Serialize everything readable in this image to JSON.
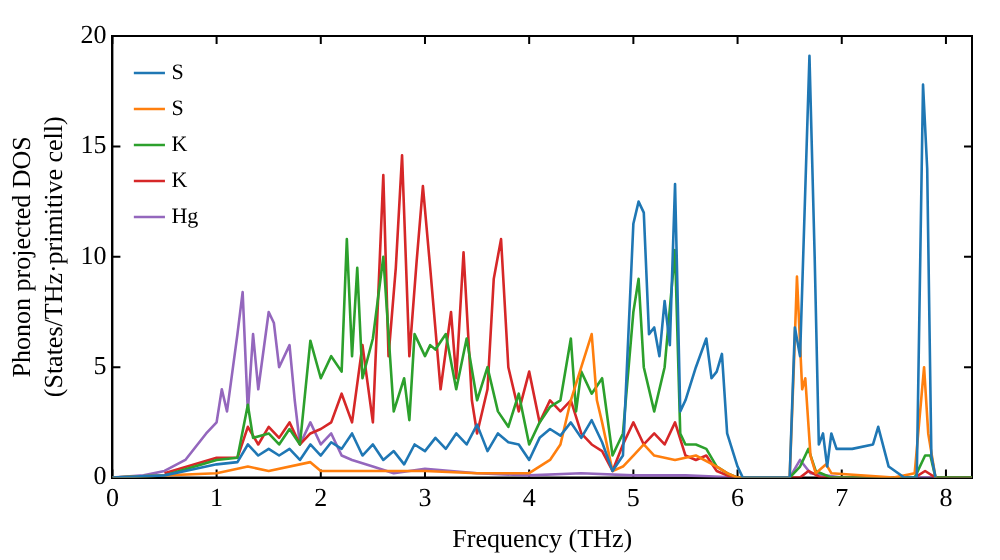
{
  "chart_data": {
    "type": "line",
    "xlabel": "Frequency (THz)",
    "ylabel": "Phonon projected DOS\n(States/THz·primitive cell)",
    "xlim": [
      0,
      8.25
    ],
    "ylim": [
      0,
      20
    ],
    "xticks": [
      0,
      1,
      2,
      3,
      4,
      5,
      6,
      7,
      8
    ],
    "yticks": [
      0,
      5,
      10,
      15,
      20
    ],
    "legend": "top left",
    "marker": "none",
    "series": [
      {
        "name": "S",
        "color": "#1f77b4",
        "x": [
          0,
          0.5,
          0.8,
          1.0,
          1.2,
          1.3,
          1.4,
          1.5,
          1.6,
          1.7,
          1.8,
          1.9,
          2.0,
          2.1,
          2.2,
          2.3,
          2.4,
          2.5,
          2.6,
          2.7,
          2.8,
          2.9,
          3.0,
          3.1,
          3.2,
          3.3,
          3.4,
          3.5,
          3.6,
          3.7,
          3.8,
          3.9,
          4.0,
          4.1,
          4.2,
          4.3,
          4.4,
          4.5,
          4.6,
          4.7,
          4.8,
          4.9,
          5.0,
          5.05,
          5.1,
          5.15,
          5.2,
          5.25,
          5.3,
          5.35,
          5.4,
          5.45,
          5.5,
          5.6,
          5.7,
          5.75,
          5.8,
          5.85,
          5.9,
          6.0,
          6.05,
          6.5,
          6.55,
          6.6,
          6.69,
          6.74,
          6.78,
          6.82,
          6.86,
          6.9,
          6.95,
          7.1,
          7.3,
          7.35,
          7.45,
          7.6,
          7.72,
          7.78,
          7.82,
          7.86,
          7.9
        ],
        "values": [
          0,
          0.1,
          0.4,
          0.6,
          0.7,
          1.5,
          1.0,
          1.3,
          1.0,
          1.3,
          0.8,
          1.5,
          1.0,
          1.6,
          1.3,
          2.0,
          1.0,
          1.5,
          0.8,
          1.2,
          0.6,
          1.5,
          1.2,
          1.8,
          1.3,
          2.0,
          1.5,
          2.4,
          1.2,
          2.0,
          1.6,
          1.5,
          0.8,
          1.8,
          2.2,
          1.9,
          2.5,
          1.8,
          2.6,
          1.6,
          0.3,
          1.0,
          11.5,
          12.5,
          12.0,
          6.5,
          6.8,
          5.5,
          8.0,
          6.0,
          13.3,
          3.0,
          3.5,
          5.0,
          6.3,
          4.5,
          4.8,
          5.6,
          2.0,
          0.5,
          0,
          0,
          6.8,
          5.5,
          19.1,
          10,
          1.5,
          2.0,
          0.5,
          2.0,
          1.3,
          1.3,
          1.5,
          2.3,
          0.5,
          0,
          0,
          17.8,
          14.0,
          1.0,
          0
        ]
      },
      {
        "name": "S",
        "color": "#ff7f0e",
        "x": [
          0,
          1.0,
          1.3,
          1.5,
          1.9,
          2.0,
          2.5,
          3.0,
          3.5,
          4.0,
          4.2,
          4.3,
          4.4,
          4.5,
          4.6,
          4.65,
          4.7,
          4.8,
          4.9,
          5.0,
          5.1,
          5.2,
          5.4,
          5.6,
          5.8,
          5.9,
          6.0,
          6.5,
          6.54,
          6.57,
          6.62,
          6.65,
          6.7,
          6.75,
          6.85,
          6.9,
          7.5,
          7.7,
          7.79,
          7.83,
          7.9
        ],
        "values": [
          0,
          0.2,
          0.5,
          0.3,
          0.7,
          0.3,
          0.3,
          0.3,
          0.2,
          0.2,
          0.8,
          1.5,
          3.5,
          5.0,
          6.5,
          3.5,
          2.5,
          0.3,
          0.5,
          1.0,
          1.5,
          1.0,
          0.8,
          1.0,
          0.5,
          0.2,
          0,
          0,
          5.0,
          9.1,
          4.0,
          4.5,
          1.0,
          0.2,
          0.6,
          0.2,
          0,
          0.2,
          5.0,
          2.0,
          0
        ]
      },
      {
        "name": "K",
        "color": "#2ca02c",
        "x": [
          0,
          0.5,
          1.0,
          1.2,
          1.3,
          1.35,
          1.5,
          1.6,
          1.7,
          1.8,
          1.9,
          2.0,
          2.1,
          2.2,
          2.25,
          2.3,
          2.35,
          2.4,
          2.5,
          2.6,
          2.7,
          2.8,
          2.85,
          2.9,
          3.0,
          3.05,
          3.1,
          3.2,
          3.3,
          3.4,
          3.5,
          3.6,
          3.7,
          3.8,
          3.9,
          4.0,
          4.1,
          4.2,
          4.3,
          4.4,
          4.45,
          4.5,
          4.6,
          4.7,
          4.8,
          4.9,
          5.0,
          5.05,
          5.1,
          5.2,
          5.3,
          5.4,
          5.45,
          5.5,
          5.6,
          5.7,
          5.8,
          5.9,
          6.0,
          6.5,
          6.6,
          6.68,
          6.75,
          6.9,
          7.7,
          7.8,
          7.85,
          7.9,
          8.25
        ],
        "values": [
          0,
          0.1,
          0.8,
          0.9,
          3.3,
          1.8,
          2.0,
          1.5,
          2.2,
          1.5,
          6.2,
          4.5,
          5.5,
          4.8,
          10.8,
          5.5,
          9.5,
          4.5,
          6.3,
          10.0,
          3.0,
          4.5,
          2.6,
          6.5,
          5.5,
          6.0,
          5.8,
          6.5,
          4.0,
          6.3,
          3.5,
          5.0,
          3.0,
          2.3,
          3.8,
          1.5,
          2.5,
          3.2,
          3.5,
          6.3,
          3.0,
          4.8,
          3.8,
          4.5,
          1.0,
          2.0,
          7.5,
          9.0,
          5.0,
          3.0,
          5.0,
          10.3,
          2.0,
          1.5,
          1.5,
          1.3,
          0.5,
          0.2,
          0,
          0,
          0.5,
          1.3,
          0.3,
          0,
          0,
          1.0,
          1.0,
          0,
          0
        ]
      },
      {
        "name": "K",
        "color": "#d62728",
        "x": [
          0.5,
          1.0,
          1.2,
          1.3,
          1.4,
          1.5,
          1.6,
          1.7,
          1.8,
          1.9,
          2.0,
          2.1,
          2.2,
          2.3,
          2.4,
          2.5,
          2.6,
          2.65,
          2.72,
          2.78,
          2.85,
          2.92,
          2.98,
          3.05,
          3.15,
          3.25,
          3.3,
          3.37,
          3.45,
          3.5,
          3.6,
          3.66,
          3.73,
          3.8,
          3.9,
          4.0,
          4.1,
          4.2,
          4.3,
          4.4,
          4.5,
          4.6,
          4.7,
          4.8,
          4.9,
          5.0,
          5.1,
          5.2,
          5.3,
          5.4,
          5.5,
          5.6,
          5.7,
          5.8,
          5.9,
          6.0,
          6.6,
          6.68,
          6.8,
          7.7,
          7.8,
          7.9,
          8.25
        ],
        "values": [
          0.2,
          0.9,
          0.9,
          2.3,
          1.5,
          2.3,
          1.8,
          2.5,
          1.5,
          2.0,
          2.2,
          2.5,
          3.8,
          2.5,
          6.0,
          2.5,
          13.7,
          5.5,
          9.5,
          14.6,
          5.5,
          9.8,
          13.2,
          9.5,
          4.0,
          7.5,
          4.5,
          10.2,
          3.5,
          2.0,
          4.0,
          9.0,
          10.8,
          5.0,
          3.0,
          4.8,
          2.5,
          3.5,
          3.0,
          3.5,
          2.0,
          1.5,
          1.2,
          0.3,
          1.5,
          2.5,
          1.5,
          2.0,
          1.5,
          2.5,
          1.0,
          0.8,
          1.0,
          0.3,
          0.1,
          0,
          0,
          0.3,
          0,
          0,
          0.3,
          0,
          0
        ]
      },
      {
        "name": "Hg",
        "color": "#9467bd",
        "x": [
          0,
          0.3,
          0.5,
          0.7,
          0.9,
          1.0,
          1.05,
          1.1,
          1.2,
          1.25,
          1.3,
          1.35,
          1.4,
          1.5,
          1.55,
          1.6,
          1.7,
          1.75,
          1.8,
          1.9,
          2.0,
          2.1,
          2.2,
          2.3,
          2.5,
          2.7,
          3.0,
          3.5,
          4.0,
          4.5,
          5.0,
          5.5,
          6.0,
          6.5,
          6.6,
          6.7,
          7.0,
          8.25
        ],
        "values": [
          0,
          0.1,
          0.3,
          0.8,
          2.0,
          2.5,
          4.0,
          3.0,
          6.5,
          8.4,
          3.0,
          6.5,
          4.0,
          7.5,
          7.0,
          5.0,
          6.0,
          3.5,
          1.5,
          2.5,
          1.5,
          2.0,
          1.0,
          0.8,
          0.5,
          0.2,
          0.4,
          0.2,
          0.1,
          0.2,
          0.1,
          0.1,
          0,
          0,
          0.8,
          0.2,
          0,
          0
        ]
      }
    ]
  }
}
